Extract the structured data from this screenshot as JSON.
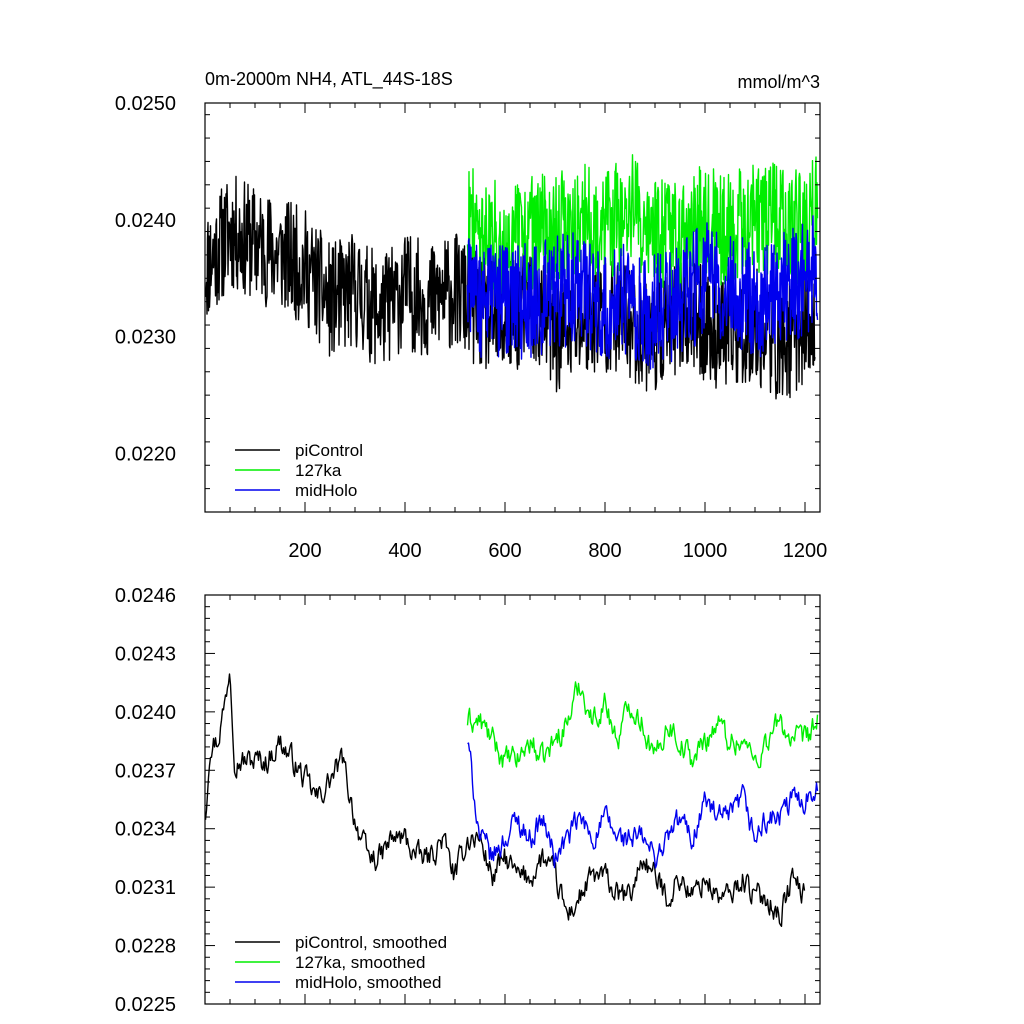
{
  "chart_data": [
    {
      "type": "line",
      "title": "0m-2000m NH4, ATL_44S-18S",
      "units": "mmol/m^3",
      "xlabel": "",
      "ylabel": "",
      "xlim": [
        0,
        1230
      ],
      "ylim": [
        0.0215,
        0.025
      ],
      "x_ticks": [
        200,
        400,
        600,
        800,
        1000,
        1200
      ],
      "x_tick_labels": [
        "200",
        "400",
        "600",
        "800",
        "1000",
        "1200"
      ],
      "y_ticks": [
        0.022,
        0.023,
        0.024,
        0.025
      ],
      "y_tick_labels": [
        "0.0220",
        "0.0230",
        "0.0240",
        "0.0250"
      ],
      "legend_position": "bottom-left",
      "grid": false,
      "series": [
        {
          "name": "piControl",
          "color": "#000000",
          "x": [
            1,
            50,
            100,
            150,
            200,
            250,
            300,
            350,
            400,
            450,
            500,
            550,
            600,
            650,
            700,
            750,
            800,
            850,
            900,
            950,
            1000,
            1050,
            1100,
            1150,
            1200,
            1220
          ],
          "values": [
            0.0236,
            0.0239,
            0.0238,
            0.0237,
            0.0236,
            0.0233,
            0.0234,
            0.0232,
            0.0234,
            0.0233,
            0.0234,
            0.0232,
            0.0231,
            0.0233,
            0.023,
            0.0231,
            0.0232,
            0.0231,
            0.023,
            0.0232,
            0.0231,
            0.023,
            0.0231,
            0.0229,
            0.0231,
            0.023
          ],
          "noise_amplitude": 0.0005
        },
        {
          "name": "127ka",
          "color": "#00ee00",
          "x": [
            525,
            550,
            600,
            650,
            700,
            750,
            800,
            850,
            900,
            950,
            1000,
            1050,
            1100,
            1150,
            1200,
            1225
          ],
          "values": [
            0.024,
            0.0239,
            0.0238,
            0.0239,
            0.0239,
            0.024,
            0.0239,
            0.0241,
            0.0239,
            0.0238,
            0.024,
            0.0239,
            0.024,
            0.024,
            0.0239,
            0.0241
          ],
          "noise_amplitude": 0.0005
        },
        {
          "name": "midHolo",
          "color": "#0000ee",
          "x": [
            525,
            550,
            600,
            650,
            700,
            750,
            800,
            850,
            900,
            950,
            1000,
            1050,
            1100,
            1150,
            1200,
            1225
          ],
          "values": [
            0.0236,
            0.0233,
            0.0233,
            0.0233,
            0.0234,
            0.0234,
            0.0233,
            0.0233,
            0.0232,
            0.0233,
            0.0235,
            0.0234,
            0.0233,
            0.0234,
            0.0235,
            0.0236
          ],
          "noise_amplitude": 0.0005
        }
      ]
    },
    {
      "type": "line",
      "title": "",
      "xlabel": "",
      "ylabel": "",
      "xlim": [
        0,
        1230
      ],
      "ylim": [
        0.0225,
        0.0246
      ],
      "x_ticks": [
        200,
        400,
        600,
        800,
        1000,
        1200
      ],
      "x_tick_labels": [],
      "y_ticks": [
        0.0225,
        0.0228,
        0.0231,
        0.0234,
        0.0237,
        0.024,
        0.0243,
        0.0246
      ],
      "y_tick_labels": [
        "0.0225",
        "0.0228",
        "0.0231",
        "0.0234",
        "0.0237",
        "0.0240",
        "0.0243",
        "0.0246"
      ],
      "legend_position": "bottom-left",
      "grid": false,
      "series": [
        {
          "name": "piControl, smoothed",
          "color": "#000000",
          "x": [
            1,
            10,
            25,
            40,
            50,
            60,
            75,
            100,
            125,
            150,
            175,
            200,
            225,
            250,
            275,
            300,
            325,
            350,
            375,
            400,
            425,
            450,
            475,
            500,
            525,
            550,
            575,
            600,
            625,
            650,
            675,
            700,
            725,
            750,
            775,
            800,
            825,
            850,
            875,
            900,
            925,
            950,
            975,
            1000,
            1025,
            1050,
            1075,
            1100,
            1125,
            1150,
            1175,
            1200
          ],
          "values": [
            0.02347,
            0.02385,
            0.02385,
            0.02405,
            0.02425,
            0.02375,
            0.02375,
            0.02375,
            0.02375,
            0.02385,
            0.02375,
            0.02365,
            0.02355,
            0.02365,
            0.02375,
            0.02345,
            0.02325,
            0.02325,
            0.02335,
            0.02335,
            0.02325,
            0.02325,
            0.02335,
            0.02315,
            0.02335,
            0.02335,
            0.02315,
            0.02325,
            0.02315,
            0.02315,
            0.02325,
            0.02315,
            0.02295,
            0.02305,
            0.02315,
            0.02315,
            0.02305,
            0.02305,
            0.02325,
            0.02315,
            0.02305,
            0.02315,
            0.02305,
            0.02315,
            0.02305,
            0.02305,
            0.02315,
            0.02305,
            0.02305,
            0.02295,
            0.02315,
            0.02305
          ],
          "noise_amplitude": 0.00012
        },
        {
          "name": "127ka, smoothed",
          "color": "#00ee00",
          "x": [
            525,
            550,
            575,
            600,
            625,
            650,
            675,
            700,
            725,
            750,
            775,
            800,
            825,
            850,
            875,
            900,
            925,
            950,
            975,
            1000,
            1025,
            1050,
            1075,
            1100,
            1125,
            1150,
            1175,
            1200,
            1225
          ],
          "values": [
            0.02395,
            0.02395,
            0.02385,
            0.02375,
            0.02375,
            0.02385,
            0.02375,
            0.02385,
            0.02395,
            0.02415,
            0.02395,
            0.02405,
            0.02385,
            0.02405,
            0.02395,
            0.02375,
            0.02395,
            0.02385,
            0.02375,
            0.02385,
            0.02395,
            0.02385,
            0.02385,
            0.02375,
            0.02385,
            0.02395,
            0.02385,
            0.02385,
            0.02395
          ],
          "noise_amplitude": 0.00012
        },
        {
          "name": "midHolo, smoothed",
          "color": "#0000ee",
          "x": [
            525,
            550,
            575,
            600,
            625,
            650,
            675,
            700,
            725,
            750,
            775,
            800,
            825,
            850,
            875,
            900,
            925,
            950,
            975,
            1000,
            1025,
            1050,
            1075,
            1100,
            1125,
            1150,
            1175,
            1200,
            1225
          ],
          "values": [
            0.02385,
            0.02335,
            0.02325,
            0.02335,
            0.02345,
            0.02335,
            0.02345,
            0.02325,
            0.02335,
            0.02345,
            0.02335,
            0.02345,
            0.02335,
            0.02335,
            0.02335,
            0.02325,
            0.02335,
            0.02345,
            0.02335,
            0.02355,
            0.02345,
            0.02345,
            0.02355,
            0.02335,
            0.02345,
            0.02345,
            0.02355,
            0.02355,
            0.02365
          ],
          "noise_amplitude": 0.00012
        }
      ]
    }
  ]
}
